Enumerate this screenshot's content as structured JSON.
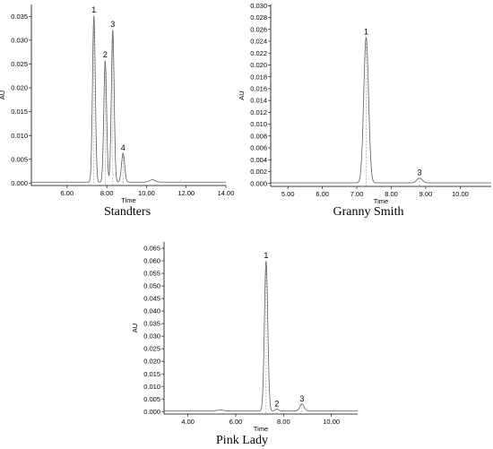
{
  "chart_data": [
    {
      "type": "line",
      "caption": "Standters",
      "xlabel": "Time",
      "ylabel": "AU",
      "xlim": [
        4.2,
        14.0
      ],
      "ylim": [
        -0.0005,
        0.0375
      ],
      "x_ticks": [
        6.0,
        8.0,
        10.0,
        12.0,
        14.0
      ],
      "x_tick_labels": [
        "6.00",
        "8.00",
        "10.00",
        "12.00",
        "14.00"
      ],
      "y_ticks": [
        0.0,
        0.005,
        0.01,
        0.015,
        0.02,
        0.025,
        0.03,
        0.035
      ],
      "y_tick_labels": [
        "0.000",
        "0.005",
        "0.010",
        "0.015",
        "0.020",
        "0.025",
        "0.030",
        "0.035"
      ],
      "baseline": 0.0002,
      "peaks": [
        {
          "label": "1",
          "x": 7.35,
          "y": 0.0352,
          "width": 0.07
        },
        {
          "label": "2",
          "x": 7.92,
          "y": 0.0258,
          "width": 0.07
        },
        {
          "label": "3",
          "x": 8.3,
          "y": 0.0322,
          "width": 0.07
        },
        {
          "label": "4",
          "x": 8.82,
          "y": 0.0063,
          "width": 0.08
        }
      ],
      "bumps": [
        {
          "x": 10.3,
          "y": 0.0005,
          "width": 0.15
        }
      ],
      "grid": false
    },
    {
      "type": "line",
      "caption": "Granny Smith",
      "xlabel": "Time",
      "ylabel": "AU",
      "xlim": [
        4.5,
        10.9
      ],
      "ylim": [
        -0.0005,
        0.0302
      ],
      "x_ticks": [
        5.0,
        6.0,
        7.0,
        8.0,
        9.0,
        10.0
      ],
      "x_tick_labels": [
        "5.00",
        "6.00",
        "7.00",
        "8.00",
        "9.00",
        "10.00"
      ],
      "y_ticks": [
        0.0,
        0.002,
        0.004,
        0.006,
        0.008,
        0.01,
        0.012,
        0.014,
        0.016,
        0.018,
        0.02,
        0.022,
        0.024,
        0.026,
        0.028,
        0.03
      ],
      "y_tick_labels": [
        "0.000",
        "0.002",
        "0.004",
        "0.006",
        "0.008",
        "0.010",
        "0.012",
        "0.014",
        "0.016",
        "0.018",
        "0.020",
        "0.022",
        "0.024",
        "0.026",
        "0.028",
        "0.030"
      ],
      "baseline": 0.0001,
      "peaks": [
        {
          "label": "1",
          "x": 7.27,
          "y": 0.0247,
          "width": 0.07
        },
        {
          "label": "3",
          "x": 8.82,
          "y": 0.0009,
          "width": 0.08
        }
      ],
      "bumps": [],
      "grid": false
    },
    {
      "type": "line",
      "caption": "Pink Lady",
      "xlabel": "Time",
      "ylabel": "AU",
      "xlim": [
        3.0,
        11.1
      ],
      "ylim": [
        -0.001,
        0.0675
      ],
      "x_ticks": [
        4.0,
        6.0,
        8.0,
        10.0
      ],
      "x_tick_labels": [
        "4.00",
        "6.00",
        "8.00",
        "10.00"
      ],
      "y_ticks": [
        0.0,
        0.005,
        0.01,
        0.015,
        0.02,
        0.025,
        0.03,
        0.035,
        0.04,
        0.045,
        0.05,
        0.055,
        0.06,
        0.065
      ],
      "y_tick_labels": [
        "0.000",
        "0.005",
        "0.010",
        "0.015",
        "0.020",
        "0.025",
        "0.030",
        "0.035",
        "0.040",
        "0.045",
        "0.050",
        "0.055",
        "0.060",
        "0.065"
      ],
      "baseline": 0.0002,
      "peaks": [
        {
          "label": "1",
          "x": 7.27,
          "y": 0.06,
          "width": 0.07
        },
        {
          "label": "2",
          "x": 7.72,
          "y": 0.001,
          "width": 0.07
        },
        {
          "label": "3",
          "x": 8.77,
          "y": 0.003,
          "width": 0.09
        }
      ],
      "bumps": [
        {
          "x": 5.35,
          "y": 0.0004,
          "width": 0.15
        }
      ],
      "grid": false
    }
  ]
}
